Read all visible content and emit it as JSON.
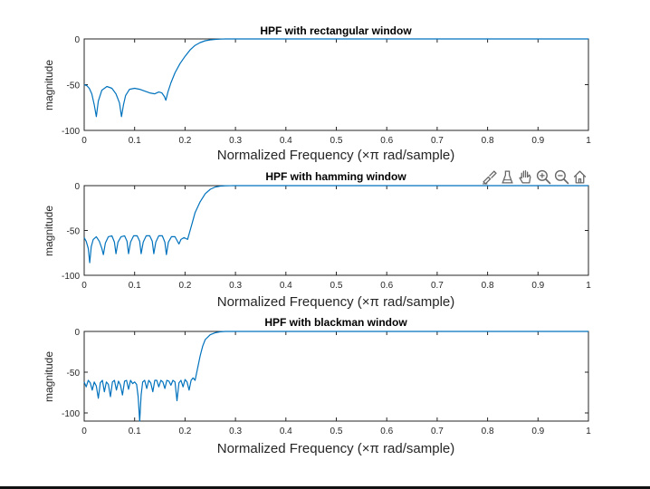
{
  "colors": {
    "series": "#0072BD",
    "axes": "#262626",
    "background": "#ffffff"
  },
  "toolbar": {
    "icons": [
      "brush-icon",
      "data-tips-icon",
      "pan-hand-icon",
      "zoom-in-icon",
      "zoom-out-icon",
      "home-icon"
    ]
  },
  "chart_data": [
    {
      "type": "line",
      "title": "HPF with rectangular window",
      "xlabel": "Normalized  Frequency  (×π  rad/sample)",
      "ylabel": "magnitude",
      "xlim": [
        0,
        1
      ],
      "ylim": [
        -100,
        0
      ],
      "xticks": [
        "0",
        "0.1",
        "0.2",
        "0.3",
        "0.4",
        "0.5",
        "0.6",
        "0.7",
        "0.8",
        "0.9",
        "1"
      ],
      "yticks": [
        "0",
        "-50",
        "-100"
      ],
      "grid": false,
      "series": [
        {
          "x": [
            0,
            0.005,
            0.01,
            0.015,
            0.02,
            0.024,
            0.028,
            0.035,
            0.045,
            0.055,
            0.063,
            0.07,
            0.074,
            0.078,
            0.082,
            0.09,
            0.1,
            0.11,
            0.12,
            0.13,
            0.14,
            0.148,
            0.154,
            0.159,
            0.162,
            0.166,
            0.172,
            0.18,
            0.19,
            0.2,
            0.21,
            0.22,
            0.23,
            0.24,
            0.25,
            0.26,
            0.27,
            0.28,
            0.3,
            0.35,
            0.5,
            0.75,
            1
          ],
          "y": [
            -50,
            -51,
            -54,
            -60,
            -72,
            -85,
            -68,
            -56,
            -52,
            -54,
            -60,
            -70,
            -85,
            -72,
            -62,
            -55,
            -54,
            -55,
            -57,
            -59,
            -60,
            -58,
            -59,
            -63,
            -67,
            -58,
            -48,
            -37,
            -27,
            -19,
            -12,
            -7,
            -4,
            -2,
            -1,
            -0.5,
            -0.2,
            0,
            0,
            0,
            0,
            0,
            0
          ]
        }
      ]
    },
    {
      "type": "line",
      "title": "HPF with hamming window",
      "xlabel": "Normalized  Frequency  (×π  rad/sample)",
      "ylabel": "magnitude",
      "xlim": [
        0,
        1
      ],
      "ylim": [
        -100,
        0
      ],
      "xticks": [
        "0",
        "0.1",
        "0.2",
        "0.3",
        "0.4",
        "0.5",
        "0.6",
        "0.7",
        "0.8",
        "0.9",
        "1"
      ],
      "yticks": [
        "0",
        "-50",
        "-100"
      ],
      "grid": false,
      "series": [
        {
          "x": [
            0,
            0.004,
            0.008,
            0.011,
            0.014,
            0.018,
            0.024,
            0.03,
            0.035,
            0.038,
            0.042,
            0.048,
            0.055,
            0.06,
            0.063,
            0.067,
            0.073,
            0.08,
            0.085,
            0.088,
            0.092,
            0.098,
            0.105,
            0.11,
            0.113,
            0.117,
            0.123,
            0.13,
            0.135,
            0.138,
            0.142,
            0.148,
            0.155,
            0.16,
            0.163,
            0.167,
            0.173,
            0.18,
            0.185,
            0.188,
            0.192,
            0.198,
            0.205,
            0.21,
            0.215,
            0.22,
            0.23,
            0.24,
            0.25,
            0.26,
            0.27,
            0.28,
            0.3,
            0.5,
            0.75,
            1
          ],
          "y": [
            -58,
            -62,
            -70,
            -86,
            -68,
            -60,
            -57,
            -62,
            -70,
            -77,
            -64,
            -57,
            -56,
            -63,
            -76,
            -63,
            -57,
            -56,
            -62,
            -76,
            -63,
            -56,
            -56,
            -62,
            -76,
            -63,
            -56,
            -56,
            -62,
            -76,
            -63,
            -56,
            -56,
            -63,
            -77,
            -63,
            -57,
            -57,
            -62,
            -65,
            -60,
            -58,
            -60,
            -50,
            -40,
            -30,
            -18,
            -9,
            -4,
            -1.5,
            -0.5,
            -0.1,
            0,
            0,
            0,
            0
          ]
        }
      ]
    },
    {
      "type": "line",
      "title": "HPF with blackman window",
      "xlabel": "Normalized  Frequency  (×π  rad/sample)",
      "ylabel": "magnitude",
      "xlim": [
        0,
        1
      ],
      "ylim": [
        -110,
        0
      ],
      "xticks": [
        "0",
        "0.1",
        "0.2",
        "0.3",
        "0.4",
        "0.5",
        "0.6",
        "0.7",
        "0.8",
        "0.9",
        "1"
      ],
      "yticks": [
        "0",
        "-50",
        "-100"
      ],
      "grid": false,
      "series": [
        {
          "x": [
            0,
            0.004,
            0.008,
            0.012,
            0.016,
            0.02,
            0.024,
            0.028,
            0.032,
            0.036,
            0.04,
            0.044,
            0.048,
            0.052,
            0.056,
            0.06,
            0.064,
            0.068,
            0.072,
            0.076,
            0.08,
            0.084,
            0.088,
            0.092,
            0.096,
            0.1,
            0.104,
            0.107,
            0.11,
            0.113,
            0.116,
            0.12,
            0.124,
            0.128,
            0.132,
            0.136,
            0.14,
            0.144,
            0.148,
            0.152,
            0.156,
            0.16,
            0.164,
            0.168,
            0.172,
            0.176,
            0.18,
            0.184,
            0.188,
            0.192,
            0.196,
            0.2,
            0.204,
            0.208,
            0.212,
            0.216,
            0.22,
            0.225,
            0.23,
            0.235,
            0.24,
            0.25,
            0.26,
            0.27,
            0.28,
            0.3,
            0.5,
            0.75,
            1
          ],
          "y": [
            -62,
            -68,
            -60,
            -63,
            -72,
            -62,
            -67,
            -82,
            -63,
            -60,
            -74,
            -62,
            -65,
            -80,
            -62,
            -60,
            -72,
            -61,
            -66,
            -78,
            -61,
            -60,
            -71,
            -60,
            -64,
            -62,
            -65,
            -80,
            -110,
            -78,
            -62,
            -60,
            -70,
            -60,
            -63,
            -74,
            -60,
            -60,
            -68,
            -60,
            -62,
            -70,
            -60,
            -61,
            -66,
            -60,
            -62,
            -85,
            -63,
            -60,
            -68,
            -59,
            -62,
            -72,
            -60,
            -57,
            -60,
            -45,
            -30,
            -18,
            -10,
            -4,
            -1.5,
            -0.4,
            0,
            0,
            0,
            0,
            0
          ]
        }
      ]
    }
  ]
}
